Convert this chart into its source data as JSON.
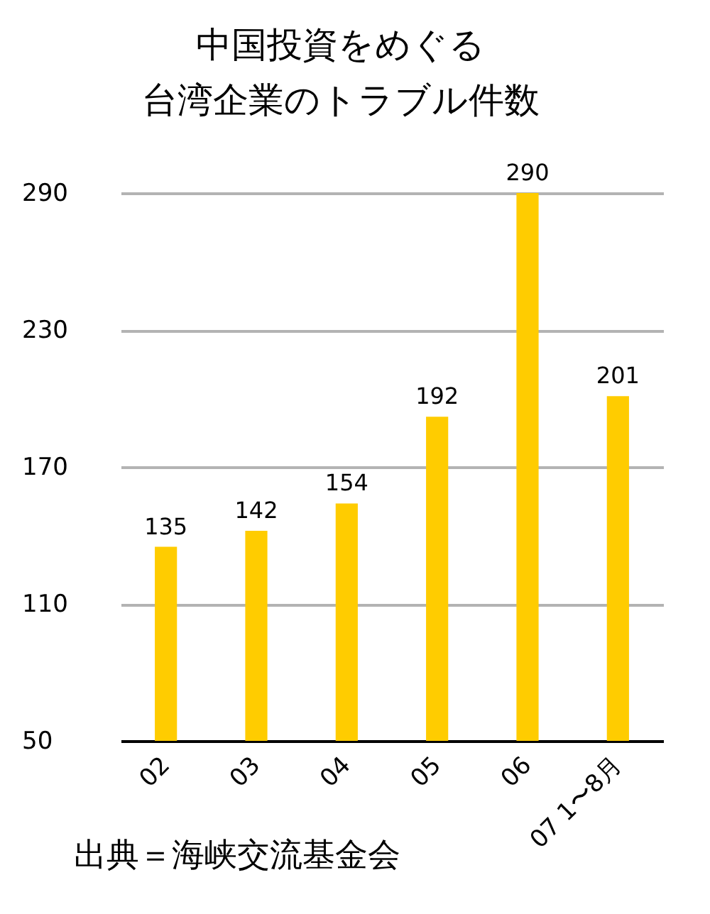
{
  "chart_data": {
    "type": "bar",
    "title": "中国投資をめぐる",
    "subtitle": "台湾企業のトラブル件数",
    "categories": [
      "02",
      "03",
      "04",
      "05",
      "06",
      "07 1〜8月"
    ],
    "values": [
      135,
      142,
      154,
      192,
      290,
      201
    ],
    "color": "#ffcc00",
    "ylim": [
      50,
      290
    ],
    "yticks": [
      50,
      110,
      170,
      230,
      290
    ],
    "grid": "y",
    "data_labels": true,
    "annotations": [
      "出典＝海峡交流基金会"
    ]
  }
}
